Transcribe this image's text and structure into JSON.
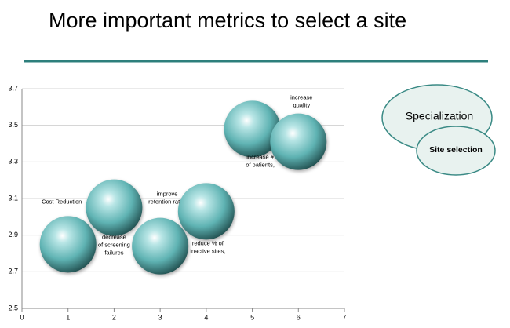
{
  "chart_data": {
    "type": "scatter",
    "title": "More important metrics to select a site",
    "x": [
      1,
      2,
      3,
      4,
      5,
      6
    ],
    "values": [
      2.85,
      3.05,
      2.84,
      3.03,
      3.48,
      3.41
    ],
    "labels": [
      [
        "Cost Reduction"
      ],
      [
        "decrease",
        "of screening",
        "failures"
      ],
      [
        "improve",
        "retention rates"
      ],
      [
        "reduce % of",
        "inactive sites,"
      ],
      [
        "increase #",
        "of patients,"
      ],
      [
        "increase",
        "quality"
      ]
    ],
    "color": "#6cc3c3",
    "xlim": [
      0,
      7
    ],
    "xticks": [
      0,
      1,
      2,
      3,
      4,
      5,
      6,
      7
    ],
    "ylim": [
      2.5,
      3.7
    ],
    "yticks": [
      2.5,
      2.7,
      2.9,
      3.1,
      3.3,
      3.5,
      3.7
    ],
    "grid": true
  },
  "venn": {
    "outer": "Specialization",
    "inner": "Site selection"
  }
}
